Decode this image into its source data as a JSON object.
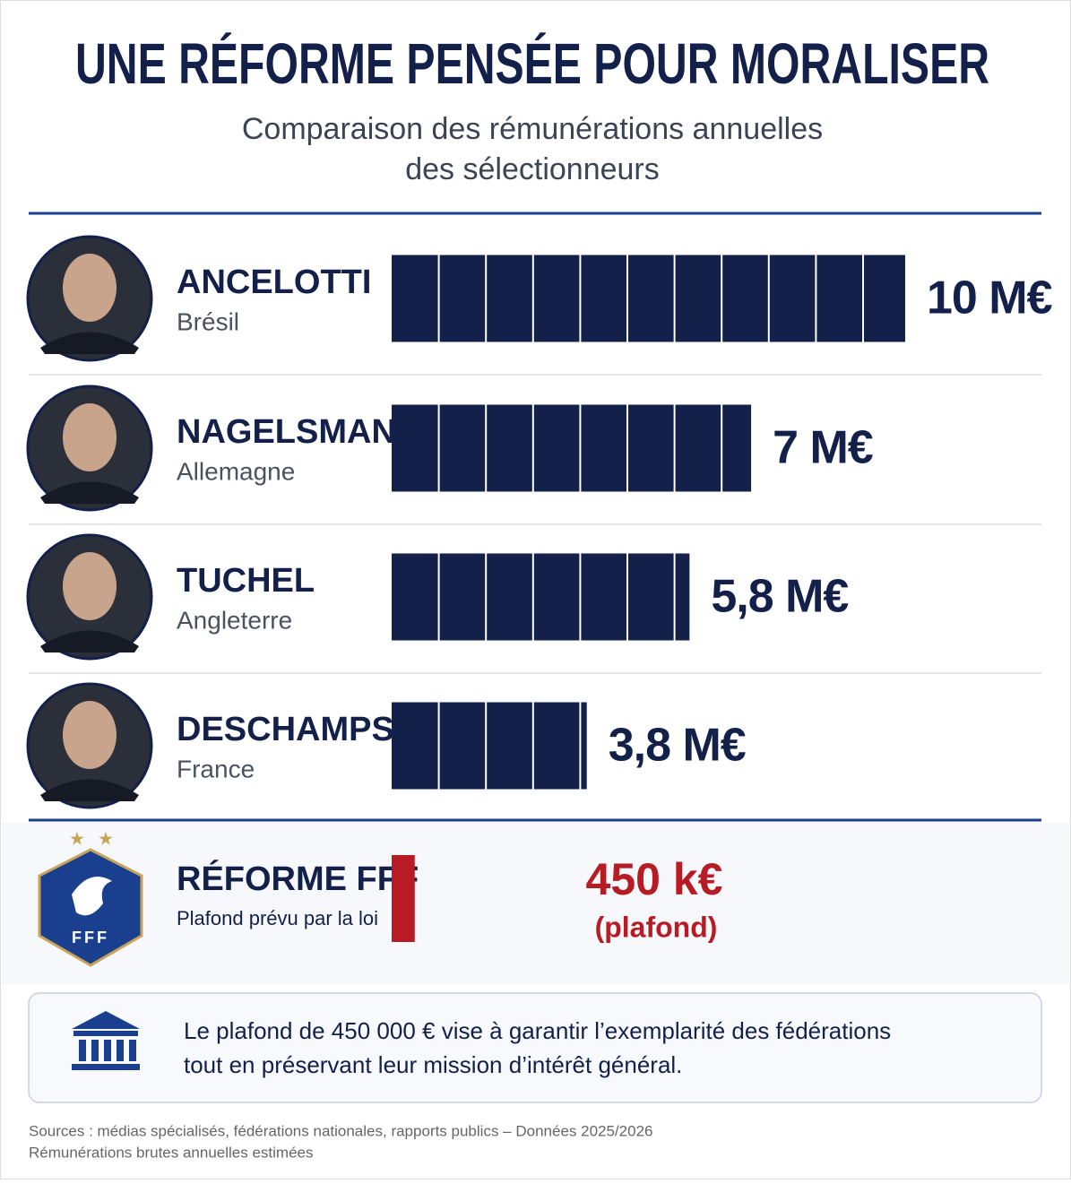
{
  "chart_data": {
    "type": "bar",
    "title": "UNE RÉFORME PENSÉE POUR MORALISER",
    "subtitle": [
      "Comparaison des rémunérations annuelles",
      "des sélectionneurs"
    ],
    "categories": [
      "ANCELOTTI",
      "NAGELSMANN",
      "TUCHEL",
      "DESCHAMPS",
      "RÉFORME FFF"
    ],
    "category_subtitles": [
      "Brésil",
      "Allemagne",
      "Angleterre",
      "France",
      "Plafond prévu par la loi"
    ],
    "values": [
      10,
      7,
      5.8,
      3.8,
      0.45
    ],
    "value_labels": [
      "10 M€",
      "7 M€",
      "5,8 M€",
      "3,8 M€",
      "450 k€"
    ],
    "colors": [
      "#13204a",
      "#13204a",
      "#13204a",
      "#13204a",
      "#b71c25"
    ],
    "annotation": "(plafond)",
    "logo_text": "FFF",
    "note": [
      "Le plafond de 450 000 € vise à garantir l’exemplarité des fédérations",
      "tout en préservant leur mission d’intérêt général."
    ],
    "sources": [
      "Sources : médias spécialisés, fédérations nationales, rapports publics – Données 2025/2026",
      "Rémunérations brutes annuelles estimées"
    ]
  }
}
